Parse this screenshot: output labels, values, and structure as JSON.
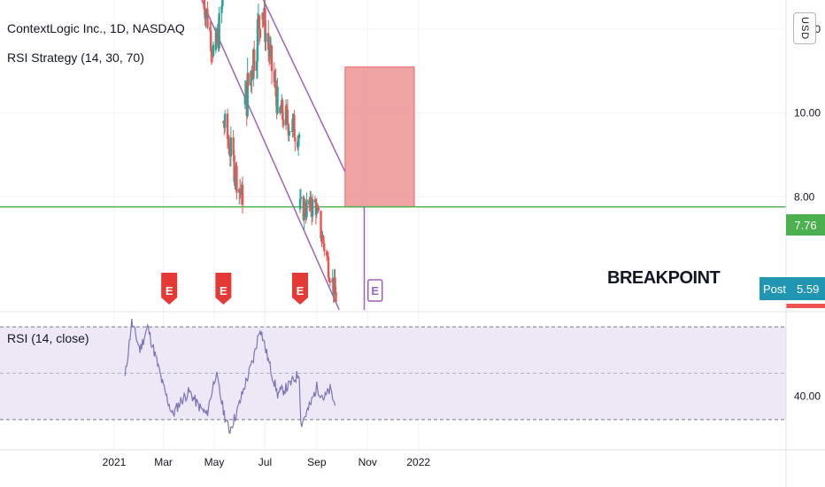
{
  "header": {
    "symbol_line": "ContextLogic Inc., 1D, NASDAQ",
    "strategy_line": "RSI Strategy (14, 30, 70)",
    "currency": "USD"
  },
  "rsi_panel": {
    "title": "RSI (14, close)"
  },
  "price_tags": {
    "current_price": "7.76",
    "post_label": "Post",
    "post_price": "5.59"
  },
  "annotation": {
    "text": "BREAKPOINT"
  },
  "colors": {
    "up": "#26a69a",
    "down": "#ef5350",
    "trendline": "#9c64b4",
    "horizontal_line": "#4caf50",
    "target_box": "#ef9a9a",
    "rsi_line": "#7e75b2",
    "rsi_band": "#ede7f6",
    "earnings_marker": "#e53935",
    "post_tag": "#2196b3"
  },
  "chart_data": [
    {
      "type": "candlestick",
      "title": "ContextLogic Inc., 1D, NASDAQ",
      "x_ticks": [
        "2021",
        "Mar",
        "May",
        "Jul",
        "Sep",
        "Nov",
        "2022"
      ],
      "y_ticks": [
        "12.00",
        "10.00",
        "8.00"
      ],
      "ylim": [
        5.3,
        12.7
      ],
      "current_price": 7.76,
      "post_market_price": 5.59,
      "earnings_markers": [
        {
          "label": "E",
          "date": "2021-03-08"
        },
        {
          "label": "E",
          "date": "2021-05-12"
        },
        {
          "label": "E",
          "date": "2021-08-12"
        },
        {
          "label": "E",
          "date": "2021-11-10"
        }
      ],
      "annotation": "BREAKPOINT",
      "trendlines": [
        {
          "name": "upper",
          "from": [
            "2021-06-29",
            12.7
          ],
          "to": [
            "2021-10-05",
            8.6
          ]
        },
        {
          "name": "lower",
          "from": [
            "2021-04-16",
            12.7
          ],
          "to": [
            "2021-09-28",
            5.3
          ]
        }
      ],
      "target_box": {
        "from_date": "2021-10-05",
        "to_date": "2021-12-27",
        "low": 7.76,
        "high": 11.1
      },
      "segments": [
        {
          "start": "2021-04-16",
          "end": "2021-04-30",
          "from": 13.0,
          "to": 11.5,
          "vol": 0.35,
          "lo": 11.2,
          "hi": 14.0
        },
        {
          "start": "2021-05-03",
          "end": "2021-05-11",
          "from": 11.5,
          "to": 12.6,
          "vol": 0.4,
          "lo": 11.0,
          "hi": 14.0
        },
        {
          "start": "2021-05-12",
          "end": "2021-06-04",
          "from": 9.8,
          "to": 7.9,
          "vol": 0.35,
          "lo": 7.8,
          "hi": 10.4
        },
        {
          "start": "2021-06-07",
          "end": "2021-06-25",
          "from": 10.2,
          "to": 12.3,
          "vol": 0.55,
          "lo": 9.6,
          "hi": 14.0
        },
        {
          "start": "2021-06-28",
          "end": "2021-07-16",
          "from": 12.4,
          "to": 10.2,
          "vol": 0.4,
          "lo": 10.0,
          "hi": 14.0
        },
        {
          "start": "2021-07-19",
          "end": "2021-08-11",
          "from": 10.0,
          "to": 9.5,
          "vol": 0.35,
          "lo": 9.0,
          "hi": 10.8
        },
        {
          "start": "2021-08-12",
          "end": "2021-08-31",
          "from": 7.7,
          "to": 7.8,
          "vol": 0.3,
          "lo": 6.5,
          "hi": 8.0
        },
        {
          "start": "2021-09-01",
          "end": "2021-09-24",
          "from": 7.6,
          "to": 5.6,
          "vol": 0.28,
          "lo": 5.35,
          "hi": 8.0
        }
      ]
    },
    {
      "type": "line",
      "title": "RSI (14, close)",
      "y_ticks": [
        "40.00"
      ],
      "bands": [
        70,
        30
      ],
      "midline": 50,
      "ylim": [
        20,
        75
      ],
      "points": [
        [
          "2021-01-14",
          48
        ],
        [
          "2021-01-22",
          72
        ],
        [
          "2021-02-01",
          60
        ],
        [
          "2021-02-10",
          70
        ],
        [
          "2021-02-19",
          58
        ],
        [
          "2021-03-01",
          44
        ],
        [
          "2021-03-12",
          32
        ],
        [
          "2021-03-22",
          38
        ],
        [
          "2021-04-01",
          42
        ],
        [
          "2021-04-12",
          36
        ],
        [
          "2021-04-22",
          32
        ],
        [
          "2021-05-03",
          50
        ],
        [
          "2021-05-12",
          34
        ],
        [
          "2021-05-19",
          25
        ],
        [
          "2021-05-28",
          33
        ],
        [
          "2021-06-07",
          45
        ],
        [
          "2021-06-17",
          56
        ],
        [
          "2021-06-25",
          70
        ],
        [
          "2021-07-06",
          54
        ],
        [
          "2021-07-16",
          41
        ],
        [
          "2021-07-28",
          44
        ],
        [
          "2021-08-11",
          50
        ],
        [
          "2021-08-13",
          28
        ],
        [
          "2021-08-24",
          36
        ],
        [
          "2021-09-01",
          44
        ],
        [
          "2021-09-10",
          39
        ],
        [
          "2021-09-17",
          43
        ],
        [
          "2021-09-23",
          36
        ]
      ]
    }
  ]
}
